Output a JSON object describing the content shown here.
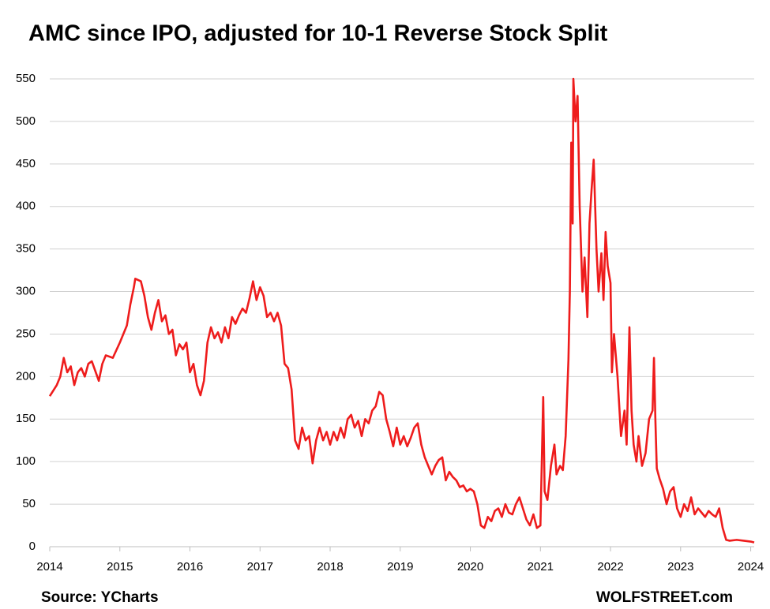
{
  "chart_data": {
    "type": "line",
    "title": "AMC since IPO, adjusted for 10-1 Reverse Stock Split",
    "source": "Source:  YCharts",
    "credit": "WOLFSTREET.com",
    "xlim": [
      2014,
      2024.05
    ],
    "xticks": [
      2014,
      2015,
      2016,
      2017,
      2018,
      2019,
      2020,
      2021,
      2022,
      2023,
      2024
    ],
    "ylim": [
      0,
      550
    ],
    "yticks": [
      0,
      50,
      100,
      150,
      200,
      250,
      300,
      350,
      400,
      450,
      500,
      550
    ],
    "grid": true,
    "x": [
      2014.0,
      2014.1,
      2014.15,
      2014.2,
      2014.25,
      2014.3,
      2014.35,
      2014.4,
      2014.45,
      2014.5,
      2014.55,
      2014.6,
      2014.7,
      2014.75,
      2014.8,
      2014.9,
      2015.0,
      2015.1,
      2015.15,
      2015.2,
      2015.22,
      2015.3,
      2015.35,
      2015.4,
      2015.45,
      2015.5,
      2015.55,
      2015.6,
      2015.65,
      2015.7,
      2015.75,
      2015.8,
      2015.85,
      2015.9,
      2015.95,
      2016.0,
      2016.05,
      2016.1,
      2016.15,
      2016.2,
      2016.25,
      2016.3,
      2016.35,
      2016.4,
      2016.45,
      2016.5,
      2016.55,
      2016.6,
      2016.65,
      2016.7,
      2016.75,
      2016.8,
      2016.85,
      2016.9,
      2016.95,
      2017.0,
      2017.05,
      2017.1,
      2017.15,
      2017.2,
      2017.25,
      2017.3,
      2017.35,
      2017.4,
      2017.45,
      2017.5,
      2017.55,
      2017.6,
      2017.65,
      2017.7,
      2017.75,
      2017.8,
      2017.85,
      2017.9,
      2017.95,
      2018.0,
      2018.05,
      2018.1,
      2018.15,
      2018.2,
      2018.25,
      2018.3,
      2018.35,
      2018.4,
      2018.45,
      2018.5,
      2018.55,
      2018.6,
      2018.65,
      2018.7,
      2018.75,
      2018.8,
      2018.85,
      2018.9,
      2018.95,
      2019.0,
      2019.05,
      2019.1,
      2019.15,
      2019.2,
      2019.25,
      2019.3,
      2019.35,
      2019.4,
      2019.45,
      2019.5,
      2019.55,
      2019.6,
      2019.65,
      2019.7,
      2019.75,
      2019.8,
      2019.85,
      2019.9,
      2019.95,
      2020.0,
      2020.05,
      2020.1,
      2020.15,
      2020.2,
      2020.25,
      2020.3,
      2020.35,
      2020.4,
      2020.45,
      2020.5,
      2020.55,
      2020.6,
      2020.65,
      2020.7,
      2020.75,
      2020.8,
      2020.85,
      2020.9,
      2020.95,
      2021.0,
      2021.04,
      2021.06,
      2021.1,
      2021.15,
      2021.2,
      2021.23,
      2021.28,
      2021.32,
      2021.36,
      2021.4,
      2021.42,
      2021.44,
      2021.46,
      2021.47,
      2021.5,
      2021.53,
      2021.56,
      2021.6,
      2021.63,
      2021.67,
      2021.7,
      2021.73,
      2021.76,
      2021.8,
      2021.83,
      2021.87,
      2021.9,
      2021.93,
      2021.96,
      2022.0,
      2022.02,
      2022.05,
      2022.1,
      2022.15,
      2022.2,
      2022.23,
      2022.27,
      2022.3,
      2022.33,
      2022.37,
      2022.4,
      2022.45,
      2022.5,
      2022.55,
      2022.6,
      2022.62,
      2022.64,
      2022.66,
      2022.7,
      2022.75,
      2022.8,
      2022.85,
      2022.9,
      2022.95,
      2023.0,
      2023.05,
      2023.1,
      2023.15,
      2023.2,
      2023.25,
      2023.3,
      2023.35,
      2023.4,
      2023.45,
      2023.5,
      2023.55,
      2023.6,
      2023.65,
      2023.7,
      2023.8,
      2023.9,
      2024.0,
      2024.05
    ],
    "series": [
      {
        "name": "AMC",
        "color": "#ee1c1c",
        "values": [
          177,
          190,
          200,
          222,
          205,
          212,
          190,
          205,
          210,
          200,
          215,
          218,
          195,
          215,
          225,
          222,
          240,
          260,
          285,
          305,
          315,
          312,
          295,
          270,
          255,
          275,
          290,
          265,
          272,
          250,
          255,
          225,
          238,
          232,
          240,
          205,
          215,
          190,
          178,
          195,
          240,
          258,
          245,
          252,
          240,
          258,
          245,
          270,
          262,
          272,
          280,
          275,
          292,
          312,
          290,
          305,
          295,
          270,
          275,
          265,
          275,
          260,
          215,
          210,
          185,
          125,
          115,
          140,
          125,
          130,
          98,
          125,
          140,
          125,
          135,
          120,
          135,
          125,
          140,
          128,
          150,
          155,
          140,
          148,
          130,
          150,
          145,
          160,
          165,
          182,
          178,
          150,
          135,
          118,
          140,
          120,
          130,
          118,
          128,
          140,
          145,
          120,
          105,
          95,
          85,
          95,
          102,
          105,
          78,
          88,
          82,
          78,
          70,
          72,
          65,
          68,
          65,
          50,
          25,
          22,
          35,
          30,
          42,
          45,
          35,
          50,
          40,
          38,
          50,
          58,
          45,
          32,
          25,
          38,
          22,
          25,
          176,
          65,
          55,
          95,
          120,
          85,
          95,
          90,
          130,
          220,
          300,
          475,
          380,
          550,
          500,
          530,
          400,
          300,
          340,
          270,
          380,
          420,
          455,
          350,
          300,
          345,
          290,
          370,
          330,
          310,
          205,
          250,
          200,
          130,
          160,
          120,
          258,
          160,
          120,
          100,
          130,
          95,
          110,
          150,
          160,
          222,
          150,
          92,
          80,
          68,
          50,
          65,
          70,
          45,
          35,
          50,
          42,
          58,
          38,
          45,
          40,
          35,
          42,
          38,
          35,
          45,
          22,
          8,
          7,
          8,
          7,
          6,
          5
        ]
      }
    ]
  }
}
